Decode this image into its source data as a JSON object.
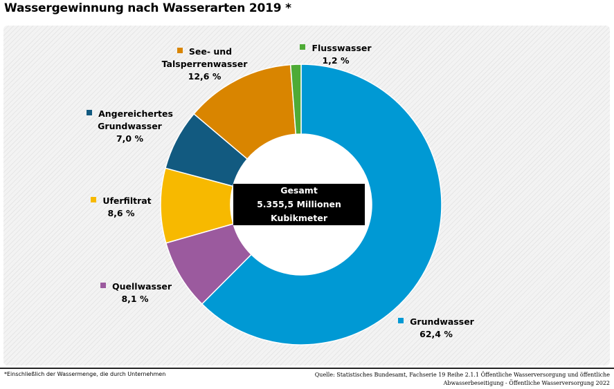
{
  "title": "Wassergewinnung nach Wasserarten 2019 *",
  "center": {
    "line1": "Gesamt",
    "line2": "5.355,5 Millionen Kubikmeter"
  },
  "labels": {
    "grundwasser": {
      "line1": "Grundwasser",
      "value": "62,4 %"
    },
    "quellwasser": {
      "line1": "Quellwasser",
      "value": "8,1 %"
    },
    "uferfiltrat": {
      "line1": "Uferfiltrat",
      "value": "8,6 %"
    },
    "angereichertes": {
      "line1": "Angereichertes",
      "line2": "Grundwasser",
      "value": "7,0 %"
    },
    "see": {
      "line1": "See- und",
      "line2": "Talsperrenwasser",
      "value": "12,6 %"
    },
    "fluss": {
      "line1": "Flusswasser",
      "value": "1,2 %"
    }
  },
  "footer": {
    "note": "*Einschließlich der Wassermenge, die durch Unternehmen",
    "source_line1": "Quelle: Statistisches Bundesamt, Fachserie 19  Reihe 2.1.1 Öffentliche Wasserversorgung und öffentliche",
    "source_line2": "Abwasserbeseitigung - Öffentliche Wasserversorgung 2022"
  },
  "chart_data": {
    "type": "pie",
    "style": "donut",
    "title": "Wassergewinnung nach Wasserarten 2019 *",
    "total_label": "Gesamt 5.355,5 Millionen Kubikmeter",
    "categories": [
      "Grundwasser",
      "Quellwasser",
      "Uferfiltrat",
      "Angereichertes Grundwasser",
      "See- und Talsperrenwasser",
      "Flusswasser"
    ],
    "values": [
      62.4,
      8.1,
      8.6,
      7.0,
      12.6,
      1.2
    ],
    "unit": "%",
    "colors": [
      "#0099d4",
      "#9b5a9e",
      "#f7b900",
      "#125a80",
      "#d98500",
      "#4eab36"
    ],
    "legend": "labels-around"
  }
}
